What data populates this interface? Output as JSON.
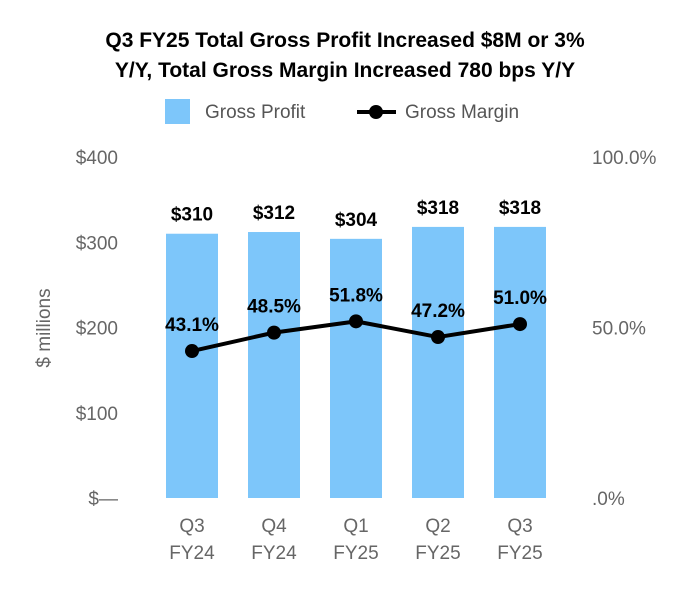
{
  "chart_data": {
    "type": "bar",
    "title_lines": [
      "Q3 FY25 Total Gross Profit Increased $8M or 3%",
      "Y/Y, Total Gross Margin Increased 780 bps Y/Y"
    ],
    "ylabel": "$ millions",
    "categories": [
      [
        "Q3",
        "FY24"
      ],
      [
        "Q4",
        "FY24"
      ],
      [
        "Q1",
        "FY25"
      ],
      [
        "Q2",
        "FY25"
      ],
      [
        "Q3",
        "FY25"
      ]
    ],
    "ylim": [
      0,
      400
    ],
    "y_ticks": [
      {
        "value": 0,
        "label": "$—"
      },
      {
        "value": 100,
        "label": "$100"
      },
      {
        "value": 200,
        "label": "$200"
      },
      {
        "value": 300,
        "label": "$300"
      },
      {
        "value": 400,
        "label": "$400"
      }
    ],
    "y2lim": [
      0,
      100
    ],
    "y2_ticks": [
      {
        "value": 0,
        "label": ".0%"
      },
      {
        "value": 50,
        "label": "50.0%"
      },
      {
        "value": 100,
        "label": "100.0%"
      }
    ],
    "series": [
      {
        "name": "Gross Profit",
        "kind": "bar",
        "axis": "left",
        "color": "#7DC6FA",
        "values": [
          310,
          312,
          304,
          318,
          318
        ],
        "labels": [
          "$310",
          "$312",
          "$304",
          "$318",
          "$318"
        ]
      },
      {
        "name": "Gross Margin",
        "kind": "line",
        "axis": "right",
        "color": "#000000",
        "values": [
          43.1,
          48.5,
          51.8,
          47.2,
          51.0
        ],
        "labels": [
          "43.1%",
          "48.5%",
          "51.8%",
          "47.2%",
          "51.0%"
        ]
      }
    ],
    "legend_position": "top-center",
    "grid": false
  }
}
